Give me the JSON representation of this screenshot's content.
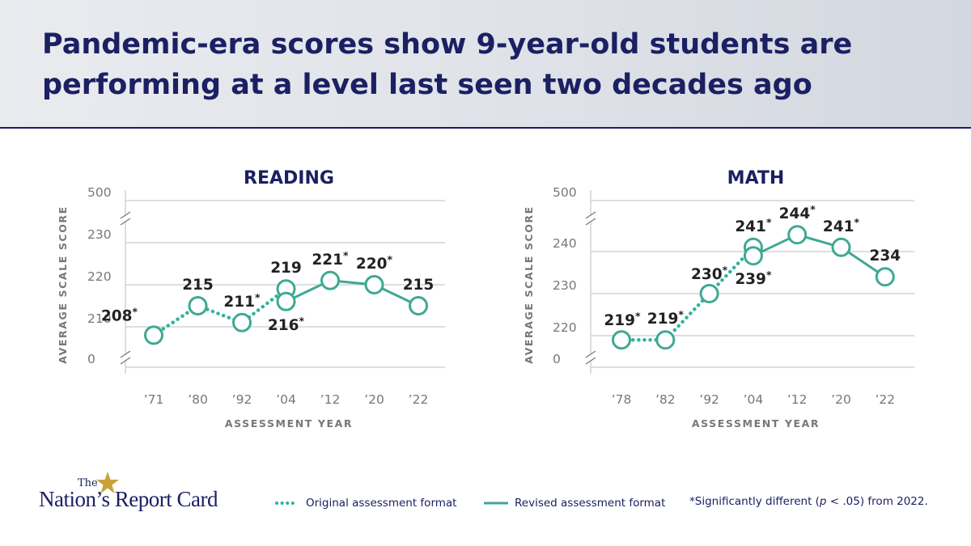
{
  "header": {
    "title_line1": "Pandemic-era scores show 9-year-old students are",
    "title_line2": "performing at a level last seen two decades ago"
  },
  "colors": {
    "navy": "#1b2063",
    "teal": "#3fa893",
    "teal_dotted": "#2fb3a0",
    "gold": "#c9a23a",
    "grid": "#cfd3d8",
    "axis_text": "#777777"
  },
  "chart_data": [
    {
      "type": "line",
      "title": "READING",
      "xlabel": "ASSESSMENT YEAR",
      "ylabel": "AVERAGE SCALE SCORE",
      "x": [
        "’71",
        "’80",
        "’92",
        "’04",
        "’12",
        "’20",
        "’22"
      ],
      "yticks": [
        "0",
        "210",
        "220",
        "230",
        "500"
      ],
      "axis_break": true,
      "ylim_shown": [
        205,
        232
      ],
      "series": [
        {
          "name": "Original assessment format",
          "style": "dotted",
          "points": [
            {
              "x": "’71",
              "y": 208,
              "label": "208",
              "significant": true
            },
            {
              "x": "’80",
              "y": 215,
              "label": "215",
              "significant": false
            },
            {
              "x": "’92",
              "y": 211,
              "label": "211",
              "significant": true
            },
            {
              "x": "’04",
              "y": 219,
              "label": "219",
              "significant": false
            }
          ]
        },
        {
          "name": "Revised assessment format",
          "style": "solid",
          "points": [
            {
              "x": "’04",
              "y": 216,
              "label": "216",
              "significant": true
            },
            {
              "x": "’12",
              "y": 221,
              "label": "221",
              "significant": true
            },
            {
              "x": "’20",
              "y": 220,
              "label": "220",
              "significant": true
            },
            {
              "x": "’22",
              "y": 215,
              "label": "215",
              "significant": false
            }
          ]
        }
      ]
    },
    {
      "type": "line",
      "title": "MATH",
      "xlabel": "ASSESSMENT YEAR",
      "ylabel": "AVERAGE SCALE SCORE",
      "x": [
        "’78",
        "’82",
        "’92",
        "’04",
        "’12",
        "’20",
        "’22"
      ],
      "yticks": [
        "0",
        "220",
        "230",
        "240",
        "500"
      ],
      "axis_break": true,
      "ylim_shown": [
        215,
        246
      ],
      "series": [
        {
          "name": "Original assessment format",
          "style": "dotted",
          "points": [
            {
              "x": "’78",
              "y": 219,
              "label": "219",
              "significant": true
            },
            {
              "x": "’82",
              "y": 219,
              "label": "219",
              "significant": true
            },
            {
              "x": "’92",
              "y": 230,
              "label": "230",
              "significant": true
            },
            {
              "x": "’04",
              "y": 241,
              "label": "241",
              "significant": true
            }
          ]
        },
        {
          "name": "Revised assessment format",
          "style": "solid",
          "points": [
            {
              "x": "’04",
              "y": 239,
              "label": "239",
              "significant": true
            },
            {
              "x": "’12",
              "y": 244,
              "label": "244",
              "significant": true
            },
            {
              "x": "’20",
              "y": 241,
              "label": "241",
              "significant": true
            },
            {
              "x": "’22",
              "y": 234,
              "label": "234",
              "significant": false
            }
          ]
        }
      ]
    }
  ],
  "footer": {
    "logo_the": "The",
    "logo_name": "Nation’s Report Card",
    "legend_original": "Original assessment format",
    "legend_revised": "Revised assessment format",
    "footnote_pre": "*Significantly different (",
    "footnote_p": "p",
    "footnote_post": " < .05) from 2022."
  }
}
